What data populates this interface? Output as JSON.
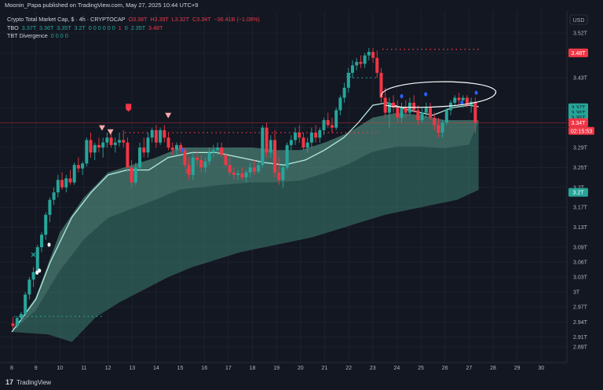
{
  "header": {
    "published": "Moonin_Papa published on TradingView.com, May 27, 2025 10:44 UTC+9"
  },
  "legend": {
    "symbol": "Crypto Total Market Cap, $ · 4h · CRYPTOCAP",
    "ohlc": {
      "o_label": "O",
      "o": "3.38T",
      "h_label": "H",
      "h": "3.39T",
      "l_label": "L",
      "l": "3.32T",
      "c_label": "C",
      "c": "3.34T",
      "change": "−36.41B (−1.08%)"
    },
    "tbo_name": "TBO",
    "tbo_values": [
      "3.37T",
      "3.36T",
      "3.35T",
      "3.2T"
    ],
    "tbo_flags": "0 0 0 0 0 0",
    "tbo_one": "1",
    "tbo_zero": "0",
    "tbo_extra": [
      "2.35T",
      "3.48T"
    ],
    "tbt_name": "TBT Divergence",
    "tbt_values": "0 0 0 0"
  },
  "footer": {
    "brand": "TradingView",
    "logo": "17"
  },
  "colors": {
    "up": "#26a69a",
    "down": "#f23645",
    "cloud": "#3c7d70",
    "band_line": "#b5ece0",
    "background": "#131722",
    "marker_blue": "#2962ff",
    "marker_pink": "#f7a9a9"
  },
  "chart_data": {
    "type": "candlestick",
    "currency": "USD",
    "y_ticks": [
      2.89,
      2.91,
      2.94,
      2.97,
      3.0,
      3.03,
      3.06,
      3.09,
      3.13,
      3.17,
      3.21,
      3.25,
      3.29,
      3.33,
      3.37,
      3.43,
      3.48,
      3.52
    ],
    "y_tick_labels": [
      "2.89T",
      "2.91T",
      "2.94T",
      "2.97T",
      "3T",
      "3.03T",
      "3.06T",
      "3.09T",
      "3.13T",
      "3.17T",
      "3.2T",
      "3.25T",
      "3.29T",
      "3.33T",
      "3.37T",
      "3.43T",
      "3.48T",
      "3.52T"
    ],
    "x_tick_labels": [
      "8",
      "9",
      "10",
      "11",
      "12",
      "13",
      "14",
      "15",
      "16",
      "17",
      "18",
      "19",
      "20",
      "21",
      "22",
      "23",
      "24",
      "25",
      "26",
      "27",
      "28",
      "29",
      "30"
    ],
    "x_tick_days": [
      8,
      9,
      10,
      11,
      12,
      13,
      14,
      15,
      16,
      17,
      18,
      19,
      20,
      21,
      22,
      23,
      24,
      25,
      26,
      27,
      28,
      29,
      30
    ],
    "price_tags": [
      {
        "label": "3.48T",
        "value": 3.48,
        "color": "#f23645"
      },
      {
        "label": "3.37T",
        "value": 3.37,
        "color": "#26a69a"
      },
      {
        "label": "3.36T",
        "value": 3.36,
        "color": "#26a69a"
      },
      {
        "label": "3.35T",
        "value": 3.35,
        "color": "#26a69a"
      },
      {
        "label": "3.34T",
        "value": 3.34,
        "color": "#f23645"
      },
      {
        "label": "3.2T",
        "value": 3.2,
        "color": "#26a69a"
      }
    ],
    "countdown": "02:15:53",
    "current_price": 3.34,
    "resistance_levels": [
      {
        "value": 3.487,
        "from_day": 23.4,
        "to_day": 27.5,
        "color": "#f23645"
      },
      {
        "value": 3.32,
        "from_day": 12.7,
        "to_day": 23.3,
        "color": "#f23645"
      },
      {
        "value": 3.43,
        "from_day": 22.0,
        "to_day": 23.2,
        "color": "#26a69a"
      },
      {
        "value": 2.951,
        "from_day": 8.1,
        "to_day": 11.8,
        "color": "#26a69a"
      }
    ],
    "cloud_upper": [
      [
        8.0,
        2.92
      ],
      [
        9.0,
        2.99
      ],
      [
        10.0,
        3.12
      ],
      [
        11.0,
        3.19
      ],
      [
        12.0,
        3.24
      ],
      [
        13.0,
        3.255
      ],
      [
        14.0,
        3.27
      ],
      [
        15.0,
        3.29
      ],
      [
        16.0,
        3.29
      ],
      [
        17.0,
        3.29
      ],
      [
        18.0,
        3.29
      ],
      [
        19.0,
        3.285
      ],
      [
        20.0,
        3.285
      ],
      [
        21.0,
        3.3
      ],
      [
        22.0,
        3.32
      ],
      [
        23.0,
        3.35
      ],
      [
        24.0,
        3.36
      ],
      [
        25.0,
        3.355
      ],
      [
        26.0,
        3.345
      ],
      [
        27.0,
        3.345
      ],
      [
        27.4,
        3.345
      ]
    ],
    "cloud_lower": [
      [
        8.0,
        2.92
      ],
      [
        9.5,
        2.915
      ],
      [
        10.5,
        2.9
      ],
      [
        11.5,
        2.95
      ],
      [
        12.5,
        2.98
      ],
      [
        13.5,
        3.005
      ],
      [
        14.5,
        3.03
      ],
      [
        15.5,
        3.05
      ],
      [
        16.5,
        3.065
      ],
      [
        17.5,
        3.08
      ],
      [
        18.5,
        3.09
      ],
      [
        19.5,
        3.1
      ],
      [
        20.5,
        3.11
      ],
      [
        21.5,
        3.125
      ],
      [
        22.5,
        3.14
      ],
      [
        23.5,
        3.155
      ],
      [
        24.5,
        3.165
      ],
      [
        25.5,
        3.175
      ],
      [
        26.5,
        3.185
      ],
      [
        27.4,
        3.205
      ]
    ],
    "band_line": [
      [
        8.0,
        2.92
      ],
      [
        9.0,
        2.985
      ],
      [
        9.6,
        3.06
      ],
      [
        10.5,
        3.15
      ],
      [
        11.3,
        3.2
      ],
      [
        12.0,
        3.235
      ],
      [
        12.8,
        3.245
      ],
      [
        13.7,
        3.245
      ],
      [
        14.5,
        3.27
      ],
      [
        15.5,
        3.28
      ],
      [
        16.5,
        3.28
      ],
      [
        17.5,
        3.27
      ],
      [
        18.5,
        3.26
      ],
      [
        19.3,
        3.255
      ],
      [
        20.2,
        3.265
      ],
      [
        21.0,
        3.285
      ],
      [
        21.8,
        3.31
      ],
      [
        22.4,
        3.34
      ],
      [
        23.0,
        3.375
      ],
      [
        23.6,
        3.38
      ],
      [
        24.5,
        3.365
      ],
      [
        25.5,
        3.355
      ],
      [
        26.3,
        3.37
      ],
      [
        27.0,
        3.375
      ],
      [
        27.4,
        3.372
      ]
    ],
    "candles": [
      [
        8.05,
        2.937,
        2.95,
        2.925,
        2.932
      ],
      [
        8.22,
        2.932,
        2.952,
        2.928,
        2.948
      ],
      [
        8.39,
        2.948,
        2.96,
        2.94,
        2.956
      ],
      [
        8.56,
        2.956,
        3.0,
        2.952,
        2.995
      ],
      [
        8.73,
        2.995,
        3.03,
        2.985,
        3.025
      ],
      [
        8.9,
        3.025,
        3.05,
        3.01,
        3.04
      ],
      [
        9.07,
        3.04,
        3.095,
        3.035,
        3.09
      ],
      [
        9.24,
        3.09,
        3.12,
        3.08,
        3.115
      ],
      [
        9.41,
        3.115,
        3.16,
        3.105,
        3.155
      ],
      [
        9.58,
        3.155,
        3.19,
        3.14,
        3.185
      ],
      [
        9.75,
        3.185,
        3.21,
        3.175,
        3.2
      ],
      [
        9.92,
        3.2,
        3.235,
        3.19,
        3.225
      ],
      [
        10.09,
        3.225,
        3.24,
        3.205,
        3.21
      ],
      [
        10.26,
        3.21,
        3.235,
        3.2,
        3.228
      ],
      [
        10.43,
        3.228,
        3.245,
        3.215,
        3.22
      ],
      [
        10.6,
        3.22,
        3.26,
        3.215,
        3.255
      ],
      [
        10.77,
        3.255,
        3.27,
        3.24,
        3.248
      ],
      [
        10.94,
        3.248,
        3.262,
        3.235,
        3.258
      ],
      [
        11.11,
        3.258,
        3.31,
        3.252,
        3.305
      ],
      [
        11.28,
        3.305,
        3.32,
        3.27,
        3.28
      ],
      [
        11.45,
        3.28,
        3.3,
        3.265,
        3.295
      ],
      [
        11.62,
        3.295,
        3.31,
        3.28,
        3.29
      ],
      [
        11.79,
        3.29,
        3.31,
        3.27,
        3.3
      ],
      [
        11.96,
        3.3,
        3.32,
        3.29,
        3.31
      ],
      [
        12.13,
        3.31,
        3.325,
        3.29,
        3.295
      ],
      [
        12.3,
        3.295,
        3.31,
        3.28,
        3.3
      ],
      [
        12.47,
        3.3,
        3.32,
        3.292,
        3.305
      ],
      [
        12.64,
        3.305,
        3.325,
        3.29,
        3.3
      ],
      [
        12.81,
        3.3,
        3.31,
        3.24,
        3.25
      ],
      [
        12.98,
        3.25,
        3.265,
        3.21,
        3.22
      ],
      [
        13.15,
        3.22,
        3.26,
        3.215,
        3.25
      ],
      [
        13.32,
        3.25,
        3.3,
        3.245,
        3.29
      ],
      [
        13.49,
        3.29,
        3.31,
        3.27,
        3.28
      ],
      [
        13.66,
        3.28,
        3.32,
        3.27,
        3.31
      ],
      [
        13.83,
        3.31,
        3.33,
        3.3,
        3.325
      ],
      [
        14.0,
        3.325,
        3.335,
        3.29,
        3.3
      ],
      [
        14.17,
        3.3,
        3.33,
        3.295,
        3.325
      ],
      [
        14.34,
        3.325,
        3.335,
        3.3,
        3.31
      ],
      [
        14.51,
        3.31,
        3.32,
        3.285,
        3.29
      ],
      [
        14.68,
        3.29,
        3.3,
        3.275,
        3.285
      ],
      [
        14.85,
        3.285,
        3.3,
        3.275,
        3.295
      ],
      [
        15.02,
        3.295,
        3.3,
        3.28,
        3.285
      ],
      [
        15.19,
        3.285,
        3.29,
        3.25,
        3.255
      ],
      [
        15.36,
        3.255,
        3.27,
        3.225,
        3.235
      ],
      [
        15.53,
        3.235,
        3.28,
        3.225,
        3.27
      ],
      [
        15.7,
        3.27,
        3.285,
        3.255,
        3.265
      ],
      [
        15.87,
        3.265,
        3.275,
        3.24,
        3.25
      ],
      [
        16.04,
        3.25,
        3.27,
        3.24,
        3.262
      ],
      [
        16.21,
        3.262,
        3.29,
        3.255,
        3.28
      ],
      [
        16.38,
        3.28,
        3.295,
        3.27,
        3.285
      ],
      [
        16.55,
        3.285,
        3.3,
        3.275,
        3.29
      ],
      [
        16.72,
        3.29,
        3.3,
        3.27,
        3.275
      ],
      [
        16.89,
        3.275,
        3.28,
        3.25,
        3.255
      ],
      [
        17.06,
        3.255,
        3.27,
        3.235,
        3.24
      ],
      [
        17.23,
        3.24,
        3.25,
        3.225,
        3.235
      ],
      [
        17.4,
        3.235,
        3.245,
        3.225,
        3.238
      ],
      [
        17.57,
        3.238,
        3.25,
        3.225,
        3.23
      ],
      [
        17.74,
        3.23,
        3.245,
        3.22,
        3.24
      ],
      [
        17.91,
        3.24,
        3.26,
        3.23,
        3.25
      ],
      [
        18.08,
        3.25,
        3.265,
        3.235,
        3.242
      ],
      [
        18.25,
        3.242,
        3.262,
        3.238,
        3.255
      ],
      [
        18.42,
        3.255,
        3.335,
        3.25,
        3.33
      ],
      [
        18.59,
        3.33,
        3.34,
        3.27,
        3.28
      ],
      [
        18.76,
        3.28,
        3.315,
        3.27,
        3.305
      ],
      [
        18.93,
        3.305,
        3.325,
        3.23,
        3.24
      ],
      [
        19.1,
        3.24,
        3.27,
        3.215,
        3.225
      ],
      [
        19.27,
        3.225,
        3.255,
        3.21,
        3.25
      ],
      [
        19.44,
        3.25,
        3.3,
        3.245,
        3.295
      ],
      [
        19.61,
        3.295,
        3.315,
        3.285,
        3.305
      ],
      [
        19.78,
        3.305,
        3.33,
        3.295,
        3.32
      ],
      [
        19.95,
        3.32,
        3.335,
        3.3,
        3.31
      ],
      [
        20.12,
        3.31,
        3.32,
        3.285,
        3.29
      ],
      [
        20.29,
        3.29,
        3.31,
        3.28,
        3.3
      ],
      [
        20.46,
        3.3,
        3.33,
        3.29,
        3.32
      ],
      [
        20.63,
        3.32,
        3.335,
        3.3,
        3.31
      ],
      [
        20.8,
        3.31,
        3.33,
        3.3,
        3.325
      ],
      [
        20.97,
        3.325,
        3.35,
        3.315,
        3.345
      ],
      [
        21.14,
        3.345,
        3.36,
        3.33,
        3.335
      ],
      [
        21.31,
        3.335,
        3.35,
        3.32,
        3.33
      ],
      [
        21.48,
        3.33,
        3.37,
        3.325,
        3.365
      ],
      [
        21.65,
        3.365,
        3.395,
        3.355,
        3.39
      ],
      [
        21.82,
        3.39,
        3.42,
        3.38,
        3.41
      ],
      [
        21.99,
        3.41,
        3.45,
        3.4,
        3.44
      ],
      [
        22.16,
        3.44,
        3.465,
        3.43,
        3.455
      ],
      [
        22.33,
        3.455,
        3.47,
        3.445,
        3.462
      ],
      [
        22.5,
        3.462,
        3.475,
        3.45,
        3.458
      ],
      [
        22.67,
        3.458,
        3.48,
        3.45,
        3.475
      ],
      [
        22.84,
        3.475,
        3.49,
        3.465,
        3.482
      ],
      [
        23.01,
        3.482,
        3.49,
        3.46,
        3.47
      ],
      [
        23.18,
        3.47,
        3.485,
        3.43,
        3.44
      ],
      [
        23.35,
        3.44,
        3.45,
        3.38,
        3.39
      ],
      [
        23.52,
        3.39,
        3.41,
        3.35,
        3.36
      ],
      [
        23.69,
        3.36,
        3.39,
        3.33,
        3.38
      ],
      [
        23.86,
        3.38,
        3.395,
        3.36,
        3.37
      ],
      [
        24.03,
        3.37,
        3.385,
        3.34,
        3.35
      ],
      [
        24.2,
        3.35,
        3.38,
        3.34,
        3.37
      ],
      [
        24.37,
        3.37,
        3.385,
        3.35,
        3.36
      ],
      [
        24.54,
        3.36,
        3.39,
        3.355,
        3.38
      ],
      [
        24.71,
        3.38,
        3.395,
        3.36,
        3.365
      ],
      [
        24.88,
        3.365,
        3.375,
        3.335,
        3.345
      ],
      [
        25.05,
        3.345,
        3.37,
        3.34,
        3.36
      ],
      [
        25.22,
        3.36,
        3.38,
        3.35,
        3.37
      ],
      [
        25.39,
        3.37,
        3.38,
        3.345,
        3.35
      ],
      [
        25.56,
        3.35,
        3.36,
        3.325,
        3.335
      ],
      [
        25.73,
        3.335,
        3.35,
        3.31,
        3.32
      ],
      [
        25.9,
        3.32,
        3.345,
        3.31,
        3.34
      ],
      [
        26.07,
        3.34,
        3.37,
        3.335,
        3.365
      ],
      [
        26.24,
        3.365,
        3.385,
        3.355,
        3.38
      ],
      [
        26.41,
        3.38,
        3.395,
        3.37,
        3.39
      ],
      [
        26.58,
        3.39,
        3.4,
        3.375,
        3.385
      ],
      [
        26.75,
        3.385,
        3.395,
        3.37,
        3.39
      ],
      [
        26.92,
        3.39,
        3.395,
        3.37,
        3.375
      ],
      [
        27.09,
        3.375,
        3.39,
        3.36,
        3.382
      ],
      [
        27.26,
        3.382,
        3.39,
        3.32,
        3.34
      ]
    ],
    "markers": [
      {
        "kind": "triangle-down",
        "day": 11.75,
        "value": 3.33,
        "color": "#f7a9a9"
      },
      {
        "kind": "triangle-down",
        "day": 12.1,
        "value": 3.322,
        "color": "#f7a9a9"
      },
      {
        "kind": "flag-down",
        "day": 12.85,
        "value": 3.37,
        "color": "#f23645"
      },
      {
        "kind": "triangle-down",
        "day": 14.5,
        "value": 3.355,
        "color": "#f7a9a9"
      },
      {
        "kind": "cross",
        "day": 8.9,
        "value": 3.075,
        "color": "#26a69a"
      },
      {
        "kind": "cross",
        "day": 22.0,
        "value": 3.435,
        "color": "#26a69a"
      },
      {
        "kind": "cross",
        "day": 15.3,
        "value": 3.243,
        "color": "#f23645"
      },
      {
        "kind": "dot",
        "day": 9.05,
        "value": 3.039,
        "color": "#ffffff"
      },
      {
        "kind": "dot",
        "day": 9.15,
        "value": 3.043,
        "color": "#ffffff"
      },
      {
        "kind": "dot",
        "day": 9.55,
        "value": 3.095,
        "color": "#ffffff"
      },
      {
        "kind": "dot",
        "day": 15.1,
        "value": 3.285,
        "color": "#2962ff"
      },
      {
        "kind": "dot",
        "day": 24.2,
        "value": 3.393,
        "color": "#2962ff"
      },
      {
        "kind": "dot",
        "day": 25.2,
        "value": 3.397,
        "color": "#2962ff"
      },
      {
        "kind": "dot",
        "day": 26.7,
        "value": 3.38,
        "color": "#2962ff"
      },
      {
        "kind": "dot",
        "day": 27.3,
        "value": 3.4,
        "color": "#2962ff"
      }
    ],
    "drawn_ellipse": {
      "center_day": 25.7,
      "center_value": 3.397,
      "width_days": 4.7,
      "height_value": 0.05
    }
  }
}
